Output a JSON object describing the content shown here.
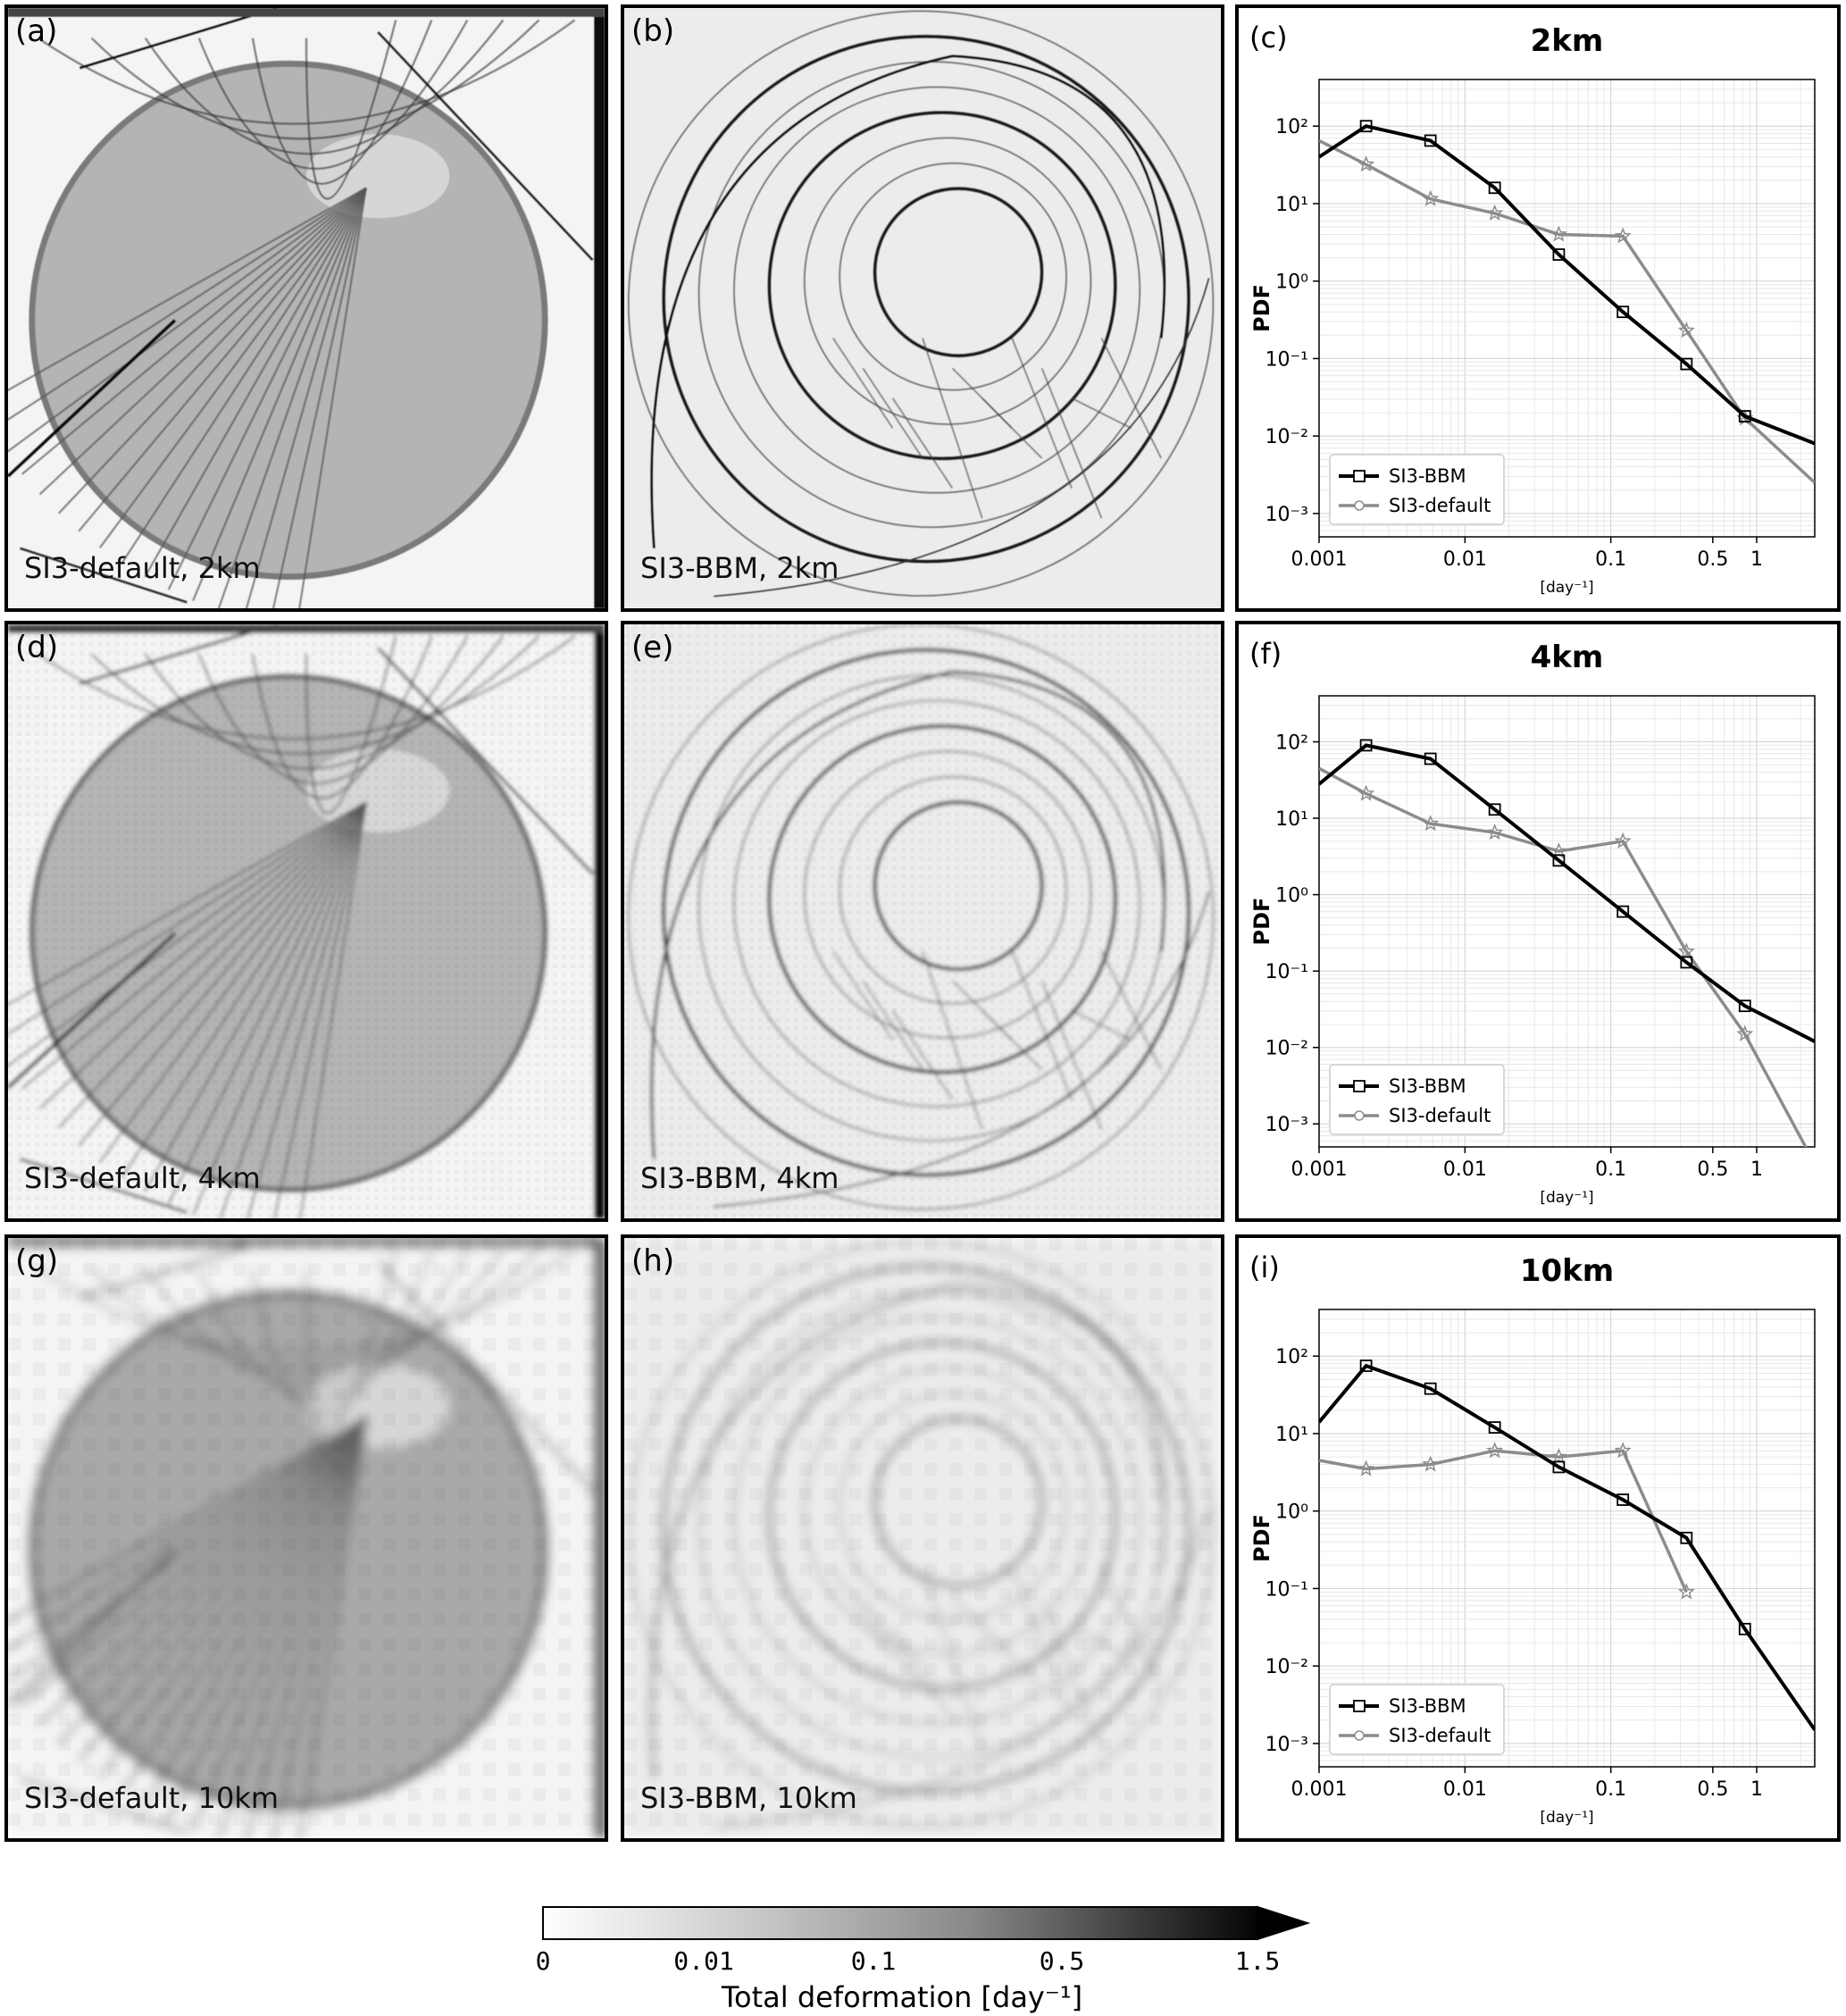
{
  "maps": [
    {
      "id": "a",
      "label": "(a)",
      "caption": "SI3-default, 2km",
      "model": "default",
      "res": "2km"
    },
    {
      "id": "b",
      "label": "(b)",
      "caption": "SI3-BBM, 2km",
      "model": "bbm",
      "res": "2km"
    },
    {
      "id": "d",
      "label": "(d)",
      "caption": "SI3-default, 4km",
      "model": "default",
      "res": "4km"
    },
    {
      "id": "e",
      "label": "(e)",
      "caption": "SI3-BBM, 4km",
      "model": "bbm",
      "res": "4km"
    },
    {
      "id": "g",
      "label": "(g)",
      "caption": "SI3-default, 10km",
      "model": "default",
      "res": "10km"
    },
    {
      "id": "h",
      "label": "(h)",
      "caption": "SI3-BBM, 10km",
      "model": "bbm",
      "res": "10km"
    }
  ],
  "chart_data": [
    {
      "type": "line",
      "panel": "(c)",
      "title": "2km",
      "ylabel": "PDF",
      "xlabel": "[day⁻¹]",
      "x_scale": "log",
      "y_scale": "log",
      "xlim": [
        0.001,
        2.5
      ],
      "ylim": [
        0.0005,
        400
      ],
      "xticks": [
        "0.001",
        "0.01",
        "0.1",
        "0.5",
        "1"
      ],
      "yticks": [
        "10⁻³",
        "10⁻²",
        "10⁻¹",
        "10⁰",
        "10¹",
        "10²"
      ],
      "grid": true,
      "legend": "lower-left",
      "series": [
        {
          "name": "SI3-BBM",
          "color": "#000000",
          "marker": "square",
          "x": [
            0.001,
            0.0021,
            0.0058,
            0.016,
            0.044,
            0.121,
            0.33,
            0.83,
            2.5
          ],
          "y": [
            40,
            100,
            65,
            16,
            2.2,
            0.4,
            0.085,
            0.018,
            0.008
          ]
        },
        {
          "name": "SI3-default",
          "color": "#8c8c8c",
          "marker": "star",
          "x": [
            0.001,
            0.0021,
            0.0058,
            0.016,
            0.044,
            0.121,
            0.33,
            0.83,
            2.5
          ],
          "y": [
            65,
            32,
            11.5,
            7.5,
            4,
            3.8,
            0.23,
            0.017,
            0.0025
          ]
        }
      ]
    },
    {
      "type": "line",
      "panel": "(f)",
      "title": "4km",
      "ylabel": "PDF",
      "xlabel": "[day⁻¹]",
      "x_scale": "log",
      "y_scale": "log",
      "xlim": [
        0.001,
        2.5
      ],
      "ylim": [
        0.0005,
        400
      ],
      "xticks": [
        "0.001",
        "0.01",
        "0.1",
        "0.5",
        "1"
      ],
      "yticks": [
        "10⁻³",
        "10⁻²",
        "10⁻¹",
        "10⁰",
        "10¹",
        "10²"
      ],
      "grid": true,
      "legend": "lower-left",
      "series": [
        {
          "name": "SI3-BBM",
          "color": "#000000",
          "marker": "square",
          "x": [
            0.001,
            0.0021,
            0.0058,
            0.016,
            0.044,
            0.121,
            0.33,
            0.83,
            2.5
          ],
          "y": [
            28,
            90,
            60,
            13,
            2.8,
            0.6,
            0.13,
            0.035,
            0.012
          ]
        },
        {
          "name": "SI3-default",
          "color": "#8c8c8c",
          "marker": "star",
          "x": [
            0.001,
            0.0021,
            0.0058,
            0.016,
            0.044,
            0.121,
            0.33,
            0.83,
            2.5
          ],
          "y": [
            45,
            21,
            8.5,
            6.5,
            3.7,
            5,
            0.18,
            0.015,
            0.0003
          ]
        }
      ]
    },
    {
      "type": "line",
      "panel": "(i)",
      "title": "10km",
      "ylabel": "PDF",
      "xlabel": "[day⁻¹]",
      "x_scale": "log",
      "y_scale": "log",
      "xlim": [
        0.001,
        2.5
      ],
      "ylim": [
        0.0005,
        400
      ],
      "xticks": [
        "0.001",
        "0.01",
        "0.1",
        "0.5",
        "1"
      ],
      "yticks": [
        "10⁻³",
        "10⁻²",
        "10⁻¹",
        "10⁰",
        "10¹",
        "10²"
      ],
      "grid": true,
      "legend": "lower-left",
      "series": [
        {
          "name": "SI3-BBM",
          "color": "#000000",
          "marker": "square",
          "x": [
            0.001,
            0.0021,
            0.0058,
            0.016,
            0.044,
            0.121,
            0.33,
            0.83,
            2.5
          ],
          "y": [
            14,
            75,
            38,
            12,
            3.7,
            1.4,
            0.45,
            0.03,
            0.0015
          ]
        },
        {
          "name": "SI3-default",
          "color": "#8c8c8c",
          "marker": "star",
          "x": [
            0.001,
            0.0021,
            0.0058,
            0.016,
            0.044,
            0.121,
            0.33
          ],
          "y": [
            4.5,
            3.5,
            4,
            6,
            5,
            6,
            0.09
          ]
        }
      ]
    }
  ],
  "colorbar": {
    "label": "Total deformation [day⁻¹]",
    "ticks": [
      "0",
      "0.01",
      "0.1",
      "0.5",
      "1.5"
    ],
    "extend": "max",
    "colors": [
      "#ffffff",
      "#000000"
    ]
  }
}
